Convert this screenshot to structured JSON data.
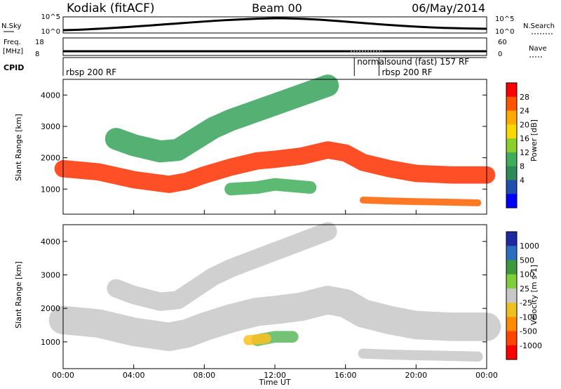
{
  "header": {
    "station": "Kodiak (fitACF)",
    "beam": "Beam 00",
    "date": "06/May/2014"
  },
  "strips": {
    "nsky_label": "N.Sky",
    "nsearch_label": "N.Search",
    "nsky_ticks": [
      "10^5",
      "10^0"
    ],
    "nsearch_ticks": [
      "10^5",
      "10^0"
    ],
    "freq_label": "Freq.",
    "freq_unit": "[MHz]",
    "freq_ticks": [
      "18",
      "8"
    ],
    "nave_label": "Nave",
    "nave_ticks": [
      "60",
      "0"
    ],
    "cpid_label": "CPID"
  },
  "cpid_segments": [
    {
      "label": "rbsp 200 RF",
      "start_hour": 0
    },
    {
      "label": "normalsound (fast) 157 RF",
      "start_hour": 16.5
    },
    {
      "label": "rbsp 200 RF",
      "start_hour": 17.9
    }
  ],
  "power_colorbar": {
    "label": "Power [dB]",
    "ticks": [
      "28",
      "24",
      "20",
      "16",
      "12",
      "8",
      "4"
    ],
    "colors": [
      "#ff0000",
      "#ff5500",
      "#ffaa00",
      "#ffd700",
      "#8ccf2a",
      "#3fae5a",
      "#2e8b57",
      "#1e4fae",
      "#0000ff"
    ]
  },
  "velocity_colorbar": {
    "label": "Velocity [m s-1]",
    "ticks": [
      "1000",
      "500",
      "100",
      "25",
      "-25",
      "-100",
      "-500",
      "-1000"
    ],
    "colors": [
      "#1e2aa0",
      "#2a6fc0",
      "#3c9a3c",
      "#7fcf3a",
      "#c8c8c8",
      "#f0c020",
      "#ff8c00",
      "#ff4500",
      "#ff0000"
    ]
  },
  "chart_data": [
    {
      "type": "heatmap",
      "name": "power",
      "ylabel": "Slant Range [km]",
      "xlabel": "",
      "ylim": [
        200,
        4500
      ],
      "xlim_hours": [
        0,
        24
      ],
      "yticks": [
        1000,
        2000,
        3000,
        4000
      ],
      "bands": [
        {
          "color": "#ff3000",
          "width": 55,
          "points": [
            [
              0,
              1650
            ],
            [
              2,
              1550
            ],
            [
              4,
              1300
            ],
            [
              6,
              1150
            ],
            [
              7,
              1250
            ],
            [
              8,
              1450
            ],
            [
              9.5,
              1700
            ],
            [
              11,
              1900
            ],
            [
              12,
              1950
            ],
            [
              13.5,
              2050
            ],
            [
              15,
              2250
            ],
            [
              16,
              2150
            ],
            [
              17,
              1850
            ],
            [
              18.5,
              1650
            ],
            [
              20,
              1500
            ],
            [
              22,
              1450
            ],
            [
              24,
              1450
            ]
          ]
        },
        {
          "color": "#36a25a",
          "width": 70,
          "points": [
            [
              3,
              2600
            ],
            [
              4,
              2400
            ],
            [
              5.5,
              2200
            ],
            [
              6.5,
              2250
            ],
            [
              7.5,
              2600
            ],
            [
              8.5,
              2950
            ],
            [
              9.5,
              3200
            ],
            [
              10.5,
              3400
            ],
            [
              12,
              3700
            ],
            [
              13,
              3900
            ],
            [
              14,
              4100
            ],
            [
              15,
              4300
            ]
          ]
        },
        {
          "color": "#ff6000",
          "width": 22,
          "points": [
            [
              17,
              650
            ],
            [
              18.5,
              620
            ],
            [
              20,
              600
            ],
            [
              22,
              580
            ],
            [
              23.5,
              560
            ]
          ]
        },
        {
          "color": "#3fae5a",
          "width": 40,
          "points": [
            [
              9.5,
              1000
            ],
            [
              11,
              1050
            ],
            [
              12,
              1150
            ],
            [
              13,
              1100
            ],
            [
              14,
              1050
            ]
          ]
        }
      ]
    },
    {
      "type": "heatmap",
      "name": "velocity",
      "ylabel": "Slant Range [km]",
      "xlabel": "Time UT",
      "ylim": [
        200,
        4500
      ],
      "xlim_hours": [
        0,
        24
      ],
      "yticks": [
        1000,
        2000,
        3000,
        4000
      ],
      "xticks": [
        "00:00",
        "04:00",
        "08:00",
        "12:00",
        "16:00",
        "20:00",
        "00:00"
      ],
      "bands": [
        {
          "color": "#c8c8c8",
          "width": 85,
          "points": [
            [
              0,
              1650
            ],
            [
              2,
              1550
            ],
            [
              4,
              1300
            ],
            [
              6,
              1150
            ],
            [
              7,
              1250
            ],
            [
              8,
              1450
            ],
            [
              9.5,
              1700
            ],
            [
              11,
              1900
            ],
            [
              12,
              1950
            ],
            [
              13.5,
              2050
            ],
            [
              15,
              2250
            ],
            [
              16,
              2150
            ],
            [
              17,
              1850
            ],
            [
              18.5,
              1650
            ],
            [
              20,
              1500
            ],
            [
              22,
              1450
            ],
            [
              24,
              1450
            ]
          ]
        },
        {
          "color": "#c8c8c8",
          "width": 55,
          "points": [
            [
              3,
              2600
            ],
            [
              4,
              2400
            ],
            [
              5.5,
              2200
            ],
            [
              6.5,
              2250
            ],
            [
              7.5,
              2600
            ],
            [
              8.5,
              2950
            ],
            [
              9.5,
              3200
            ],
            [
              10.5,
              3400
            ],
            [
              12,
              3700
            ],
            [
              13,
              3900
            ],
            [
              14,
              4100
            ],
            [
              15,
              4300
            ]
          ]
        },
        {
          "color": "#c8c8c8",
          "width": 30,
          "points": [
            [
              17,
              650
            ],
            [
              18.5,
              620
            ],
            [
              20,
              600
            ],
            [
              22,
              580
            ],
            [
              23.5,
              560
            ]
          ]
        },
        {
          "color": "#5cb85c",
          "width": 35,
          "points": [
            [
              11,
              1050
            ],
            [
              12,
              1150
            ],
            [
              13,
              1150
            ]
          ]
        },
        {
          "color": "#ffc020",
          "width": 30,
          "points": [
            [
              10.5,
              1050
            ],
            [
              11.5,
              1100
            ]
          ]
        }
      ]
    }
  ]
}
